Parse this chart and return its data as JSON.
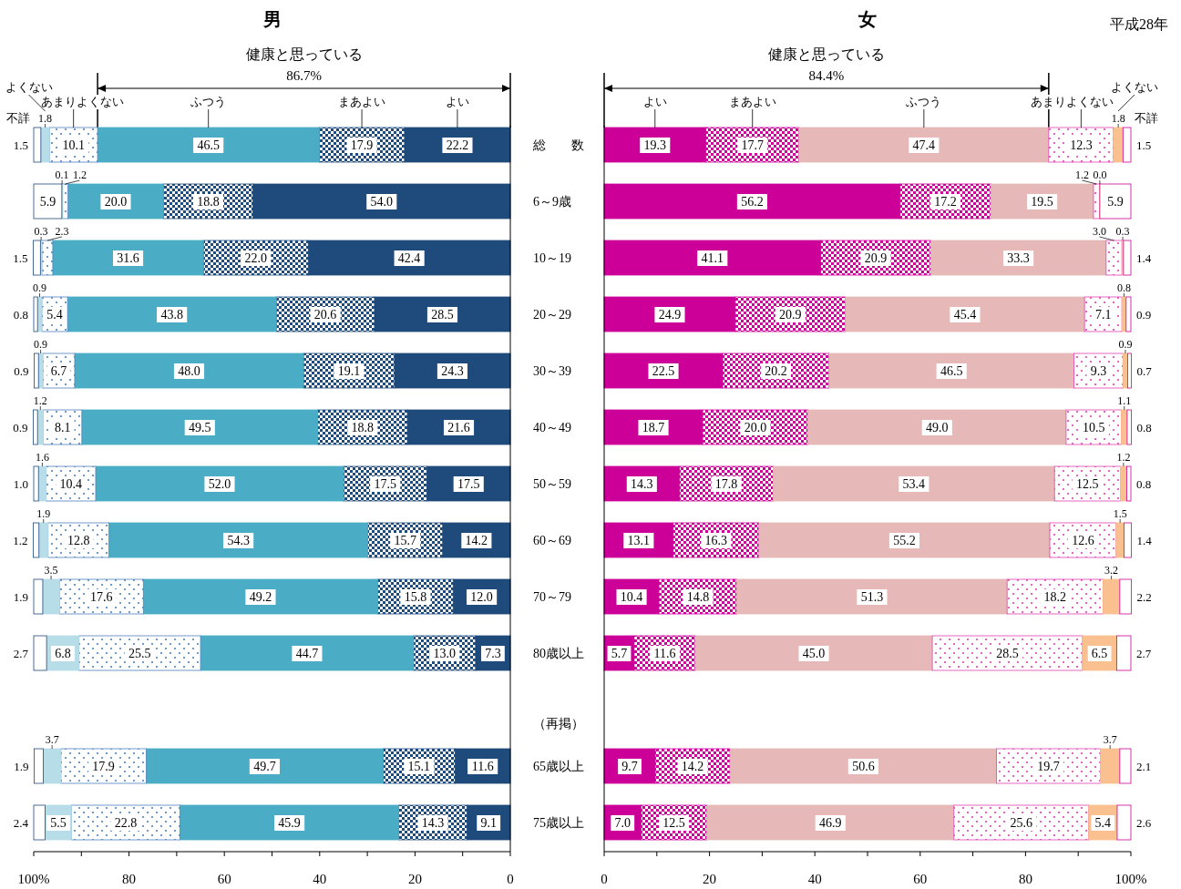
{
  "chart_data": [
    {
      "type": "bar",
      "orientation": "horizontal",
      "stacked": true,
      "title": "男",
      "categories": [
        "総　　数",
        "6～9歳",
        "10～19",
        "20～29",
        "30～39",
        "40～49",
        "50～59",
        "60～69",
        "70～79",
        "80歳以上",
        "（再掲）",
        "65歳以上",
        "75歳以上"
      ],
      "xlim": [
        100,
        0
      ],
      "xticks": [
        {
          "value": 100,
          "label": "100%"
        },
        {
          "value": 90,
          "label": null
        },
        80,
        {
          "value": 70,
          "label": null
        },
        60,
        {
          "value": 50,
          "label": null
        },
        40,
        {
          "value": 30,
          "label": null
        },
        20,
        {
          "value": 10,
          "label": null
        },
        0
      ],
      "annotations": [
        "健康と思っている",
        "86.7%"
      ],
      "series": [
        {
          "name": "よい",
          "color": "#1f4a7c",
          "values": [
            22.2,
            54.0,
            42.4,
            28.5,
            24.3,
            21.6,
            17.5,
            14.2,
            12.0,
            7.3,
            null,
            11.6,
            9.1
          ],
          "value_labels": [
            "22.2",
            "54.0",
            "42.4",
            "28.5",
            "24.3",
            "21.6",
            "17.5",
            "14.2",
            "12.0",
            "7.3",
            null,
            "11.6",
            "9.1"
          ]
        },
        {
          "name": "まあよい",
          "color": "#1f4a7c",
          "values": [
            17.9,
            18.8,
            22.0,
            20.6,
            19.1,
            18.8,
            17.5,
            15.7,
            15.8,
            13.0,
            null,
            15.1,
            14.3
          ],
          "value_labels": [
            "17.9",
            "18.8",
            "22.0",
            "20.6",
            "19.1",
            "18.8",
            "17.5",
            "15.7",
            "15.8",
            "13.0",
            null,
            "15.1",
            "14.3"
          ]
        },
        {
          "name": "ふつう",
          "color": "#4bacc6",
          "values": [
            46.5,
            20.0,
            31.6,
            43.8,
            48.0,
            49.5,
            52.0,
            54.3,
            49.2,
            44.7,
            null,
            49.7,
            45.9
          ],
          "value_labels": [
            "46.5",
            "20.0",
            "31.6",
            "43.8",
            "48.0",
            "49.5",
            "52.0",
            "54.3",
            "49.2",
            "44.7",
            null,
            "49.7",
            "45.9"
          ]
        },
        {
          "name": "あまりよくない",
          "color": "#4f81bd",
          "values": [
            10.1,
            1.2,
            2.3,
            5.4,
            6.7,
            8.1,
            10.4,
            12.8,
            17.6,
            25.5,
            null,
            17.9,
            22.8
          ],
          "value_labels": [
            "10.1",
            "1.2",
            "2.3",
            "5.4",
            "6.7",
            "8.1",
            "10.4",
            "12.8",
            "17.6",
            "25.5",
            null,
            "17.9",
            "22.8"
          ]
        },
        {
          "name": "よくない",
          "color": "#b7dde8",
          "values": [
            1.8,
            0.1,
            0.3,
            0.9,
            0.9,
            1.2,
            1.6,
            1.9,
            3.5,
            6.8,
            null,
            3.7,
            5.5
          ],
          "value_labels": [
            "1.8",
            "0.1",
            "0.3",
            "0.9",
            "0.9",
            "1.2",
            "1.6",
            "1.9",
            "3.5",
            "6.8",
            null,
            "3.7",
            "5.5"
          ]
        },
        {
          "name": "不詳",
          "color": "#ffffff",
          "values": [
            1.5,
            5.9,
            1.5,
            0.8,
            0.9,
            0.9,
            1.0,
            1.2,
            1.9,
            2.7,
            null,
            1.9,
            2.4
          ],
          "value_labels": [
            "1.5",
            "5.9",
            "1.5",
            "0.8",
            "0.9",
            "0.9",
            "1.0",
            "1.2",
            "1.9",
            "2.7",
            null,
            "1.9",
            "2.4"
          ]
        }
      ]
    },
    {
      "type": "bar",
      "orientation": "horizontal",
      "stacked": true,
      "title": "女",
      "tick_labels": "x",
      "categories": [
        null,
        null,
        null,
        null,
        null,
        null,
        null,
        null,
        null,
        null,
        null,
        null,
        null
      ],
      "xlim": [
        0,
        100
      ],
      "xticks": [
        0,
        {
          "value": 10,
          "label": null
        },
        20,
        {
          "value": 30,
          "label": null
        },
        40,
        {
          "value": 50,
          "label": null
        },
        60,
        {
          "value": 70,
          "label": null
        },
        80,
        {
          "value": 90,
          "label": null
        },
        {
          "value": 100,
          "label": "100%"
        }
      ],
      "annotations": [
        "健康と思っている",
        "84.4%",
        "平成28年"
      ],
      "series": [
        {
          "name": "よい",
          "color": "#cc0099",
          "values": [
            19.3,
            56.2,
            41.1,
            24.9,
            22.5,
            18.7,
            14.3,
            13.1,
            10.4,
            5.7,
            null,
            9.7,
            7.0
          ],
          "value_labels": [
            "19.3",
            "56.2",
            "41.1",
            "24.9",
            "22.5",
            "18.7",
            "14.3",
            "13.1",
            "10.4",
            "5.7",
            null,
            "9.7",
            "7.0"
          ]
        },
        {
          "name": "まあよい",
          "color": "#cc0099",
          "values": [
            17.7,
            17.2,
            20.9,
            20.9,
            20.2,
            20.0,
            17.8,
            16.3,
            14.8,
            11.6,
            null,
            14.2,
            12.5
          ],
          "value_labels": [
            "17.7",
            "17.2",
            "20.9",
            "20.9",
            "20.2",
            "20.0",
            "17.8",
            "16.3",
            "14.8",
            "11.6",
            null,
            "14.2",
            "12.5"
          ]
        },
        {
          "name": "ふつう",
          "color": "#e6b8b7",
          "values": [
            47.4,
            19.5,
            33.3,
            45.4,
            46.5,
            49.0,
            53.4,
            55.2,
            51.3,
            45.0,
            null,
            50.6,
            46.9
          ],
          "value_labels": [
            "47.4",
            "19.5",
            "33.3",
            "45.4",
            "46.5",
            "49.0",
            "53.4",
            "55.2",
            "51.3",
            "45.0",
            null,
            "50.6",
            "46.9"
          ]
        },
        {
          "name": "あまりよくない",
          "color": "#e040b0",
          "values": [
            12.3,
            1.2,
            3.0,
            7.1,
            9.3,
            10.5,
            12.5,
            12.6,
            18.2,
            28.5,
            null,
            19.7,
            25.6
          ],
          "value_labels": [
            "12.3",
            "1.2",
            "3.0",
            "7.1",
            "9.3",
            "10.5",
            "12.5",
            "12.6",
            "18.2",
            "28.5",
            null,
            "19.7",
            "25.6"
          ]
        },
        {
          "name": "よくない",
          "color": "#fac090",
          "values": [
            1.8,
            0.0,
            0.3,
            0.8,
            0.9,
            1.1,
            1.2,
            1.5,
            3.2,
            6.5,
            null,
            3.7,
            5.4
          ],
          "value_labels": [
            "1.8",
            "0.0",
            "0.3",
            "0.8",
            "0.9",
            "1.1",
            "1.2",
            "1.5",
            "3.2",
            "6.5",
            null,
            "3.7",
            "5.4"
          ]
        },
        {
          "name": "不詳",
          "color": "#ffffff",
          "values": [
            1.5,
            5.9,
            1.4,
            0.9,
            0.7,
            0.8,
            0.8,
            1.4,
            2.2,
            2.7,
            null,
            2.1,
            2.6
          ],
          "value_labels": [
            "1.5",
            "5.9",
            "1.4",
            "0.9",
            "0.7",
            "0.8",
            "0.8",
            "1.4",
            "2.2",
            "2.7",
            null,
            "2.1",
            "2.6"
          ]
        }
      ]
    }
  ]
}
